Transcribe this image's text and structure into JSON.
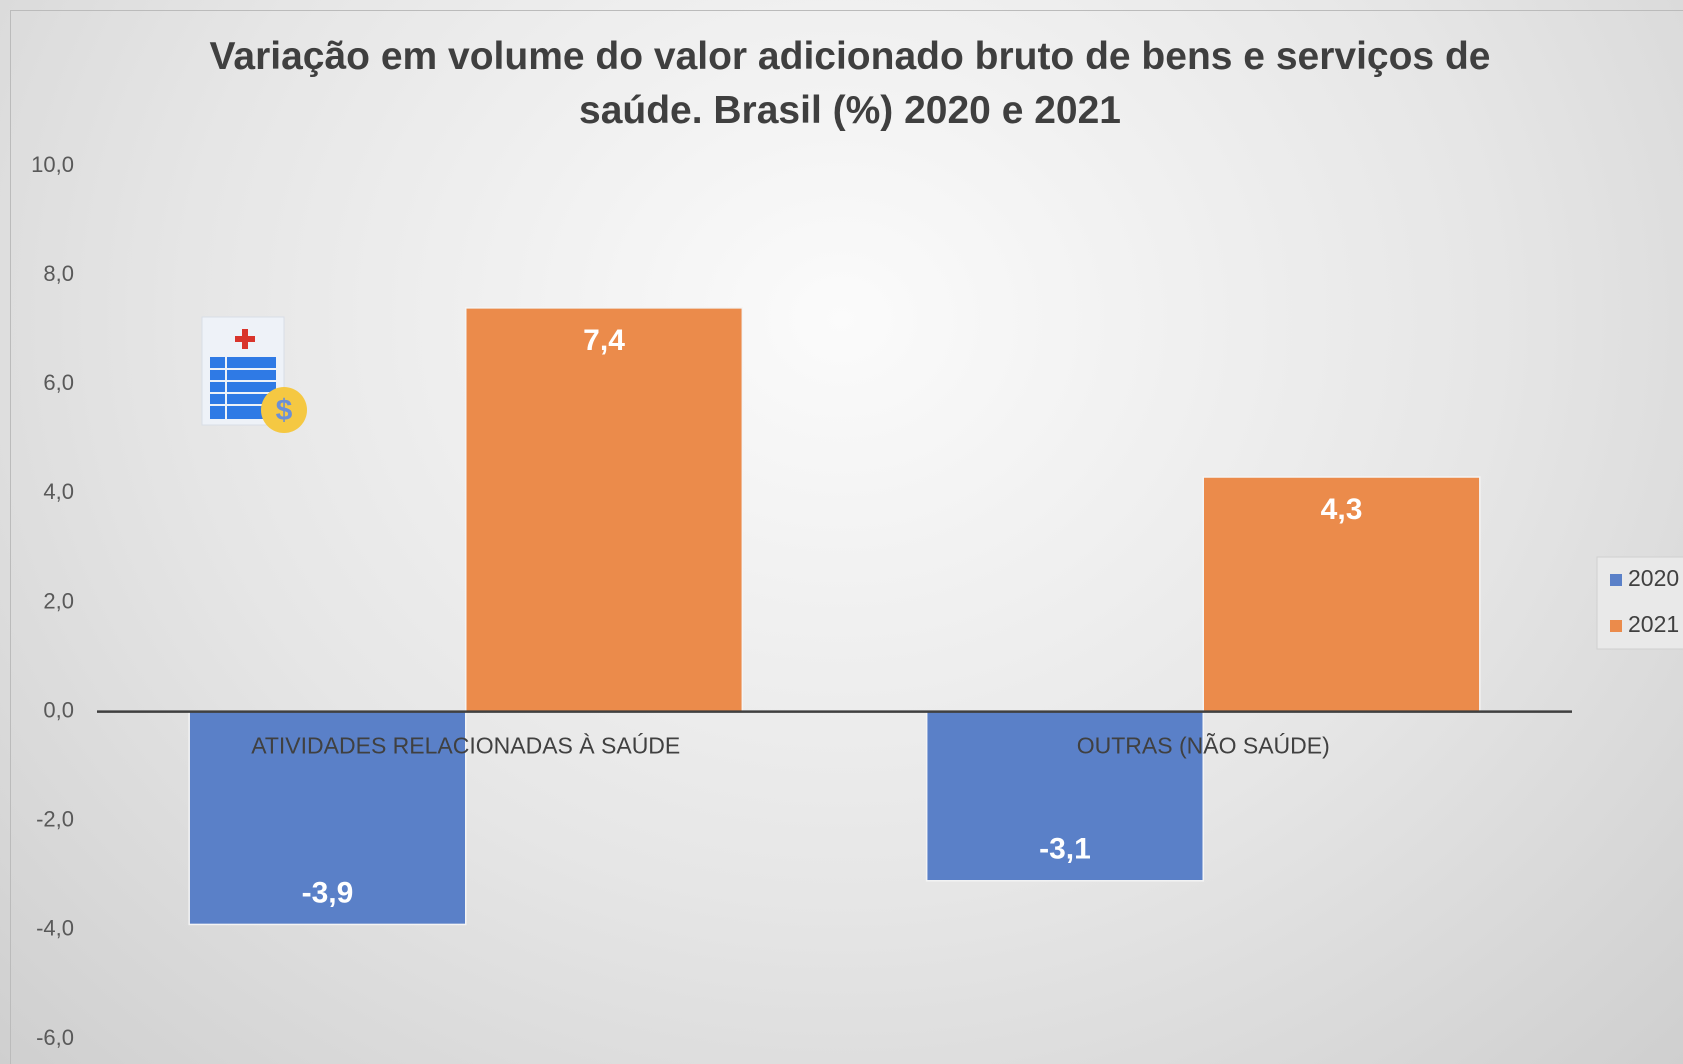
{
  "chart_data": {
    "type": "bar",
    "title": "Variação em volume do valor adicionado bruto de bens e serviços de saúde. Brasil (%) 2020 e 2021",
    "categories": [
      "ATIVIDADES RELACIONADAS À SAÚDE",
      "OUTRAS (NÃO SAÚDE)"
    ],
    "series": [
      {
        "name": "2020",
        "color": "#5a80c8",
        "values": [
          -3.9,
          -3.1
        ],
        "value_labels": [
          "-3,9",
          "-3,1"
        ]
      },
      {
        "name": "2021",
        "color": "#eb8b4b",
        "values": [
          7.4,
          4.3
        ],
        "value_labels": [
          "7,4",
          "4,3"
        ]
      }
    ],
    "ylim": [
      -6,
      10
    ],
    "yticks": [
      {
        "value": -6,
        "label": "-6,0"
      },
      {
        "value": -4,
        "label": "-4,0"
      },
      {
        "value": -2,
        "label": "-2,0"
      },
      {
        "value": 0,
        "label": "0,0"
      },
      {
        "value": 2,
        "label": "2,0"
      },
      {
        "value": 4,
        "label": "4,0"
      },
      {
        "value": 6,
        "label": "6,0"
      },
      {
        "value": 8,
        "label": "8,0"
      },
      {
        "value": 10,
        "label": "10,0"
      }
    ],
    "grid": false,
    "legend": "right"
  }
}
